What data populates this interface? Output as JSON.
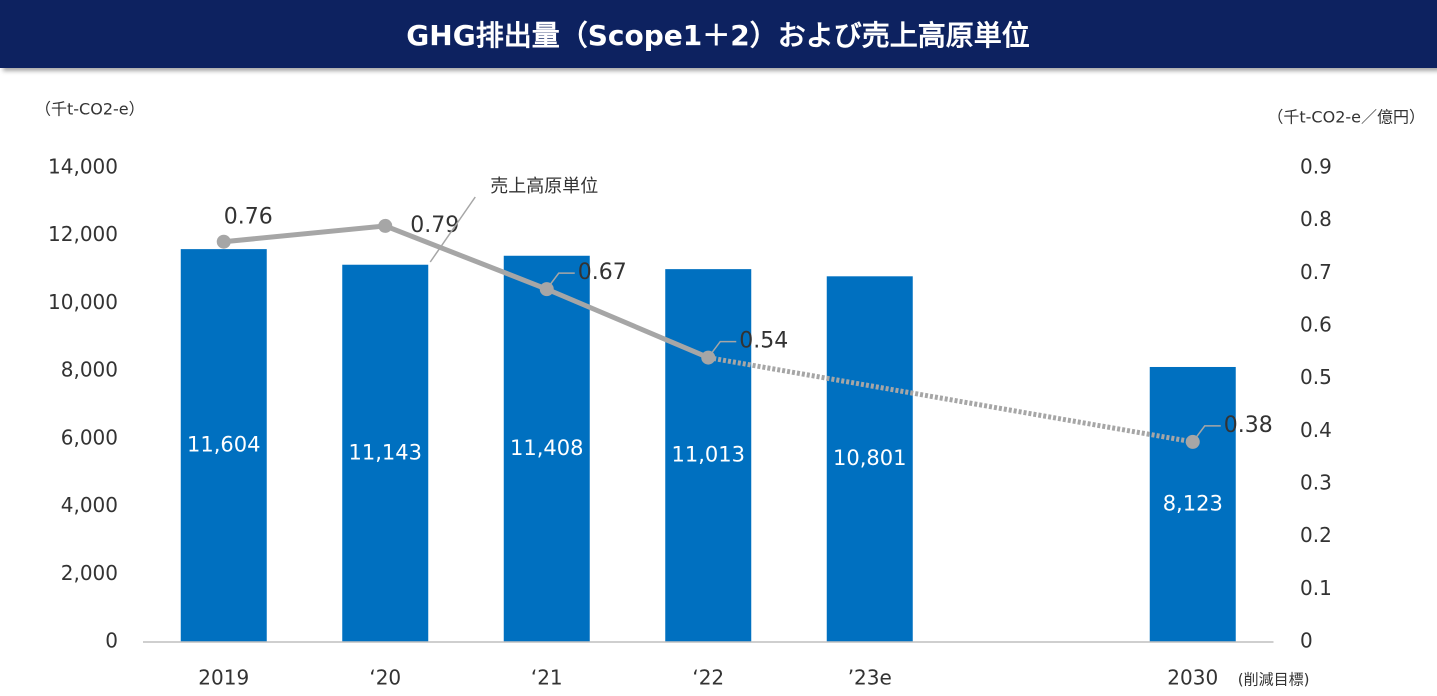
{
  "chart_data": {
    "type": "bar_line",
    "title": "GHG排出量（Scope1＋2）および売上高原単位",
    "y_axis_label": "（千t-CO2-e）",
    "y2_axis_label": "（千t-CO2-e／億円）",
    "categories": [
      "2019",
      "‘20",
      "‘21",
      "‘22",
      "’23e",
      null,
      "2030"
    ],
    "category_note": "(削減目標)",
    "series": [
      {
        "name": "GHG排出量",
        "type": "bar",
        "color": "#0070c0",
        "values": [
          11604,
          11143,
          11408,
          11013,
          10801,
          null,
          8123
        ],
        "value_labels": [
          "11,604",
          "11,143",
          "11,408",
          "11,013",
          "10,801",
          null,
          "8,123"
        ]
      },
      {
        "name": "売上高原単位",
        "type": "line",
        "axis": "y2",
        "color": "#a6a6a6",
        "dashed_from": 3,
        "values": [
          0.76,
          0.79,
          0.67,
          0.54,
          null,
          null,
          0.38
        ]
      }
    ],
    "ylim": [
      0,
      14000
    ],
    "yticks": [
      0,
      {
        "value": 2000,
        "label": "2,000"
      },
      {
        "value": 4000,
        "label": "4,000"
      },
      {
        "value": 6000,
        "label": "6,000"
      },
      {
        "value": 8000,
        "label": "8,000"
      },
      {
        "value": 10000,
        "label": "10,000"
      },
      {
        "value": 12000,
        "label": "12,000"
      },
      {
        "value": 14000,
        "label": "14,000"
      }
    ],
    "y2lim": [
      0,
      0.9
    ],
    "y2ticks": [
      0,
      0.1,
      0.2,
      0.3,
      0.4,
      0.5,
      0.6,
      0.7,
      0.8,
      0.9
    ]
  }
}
